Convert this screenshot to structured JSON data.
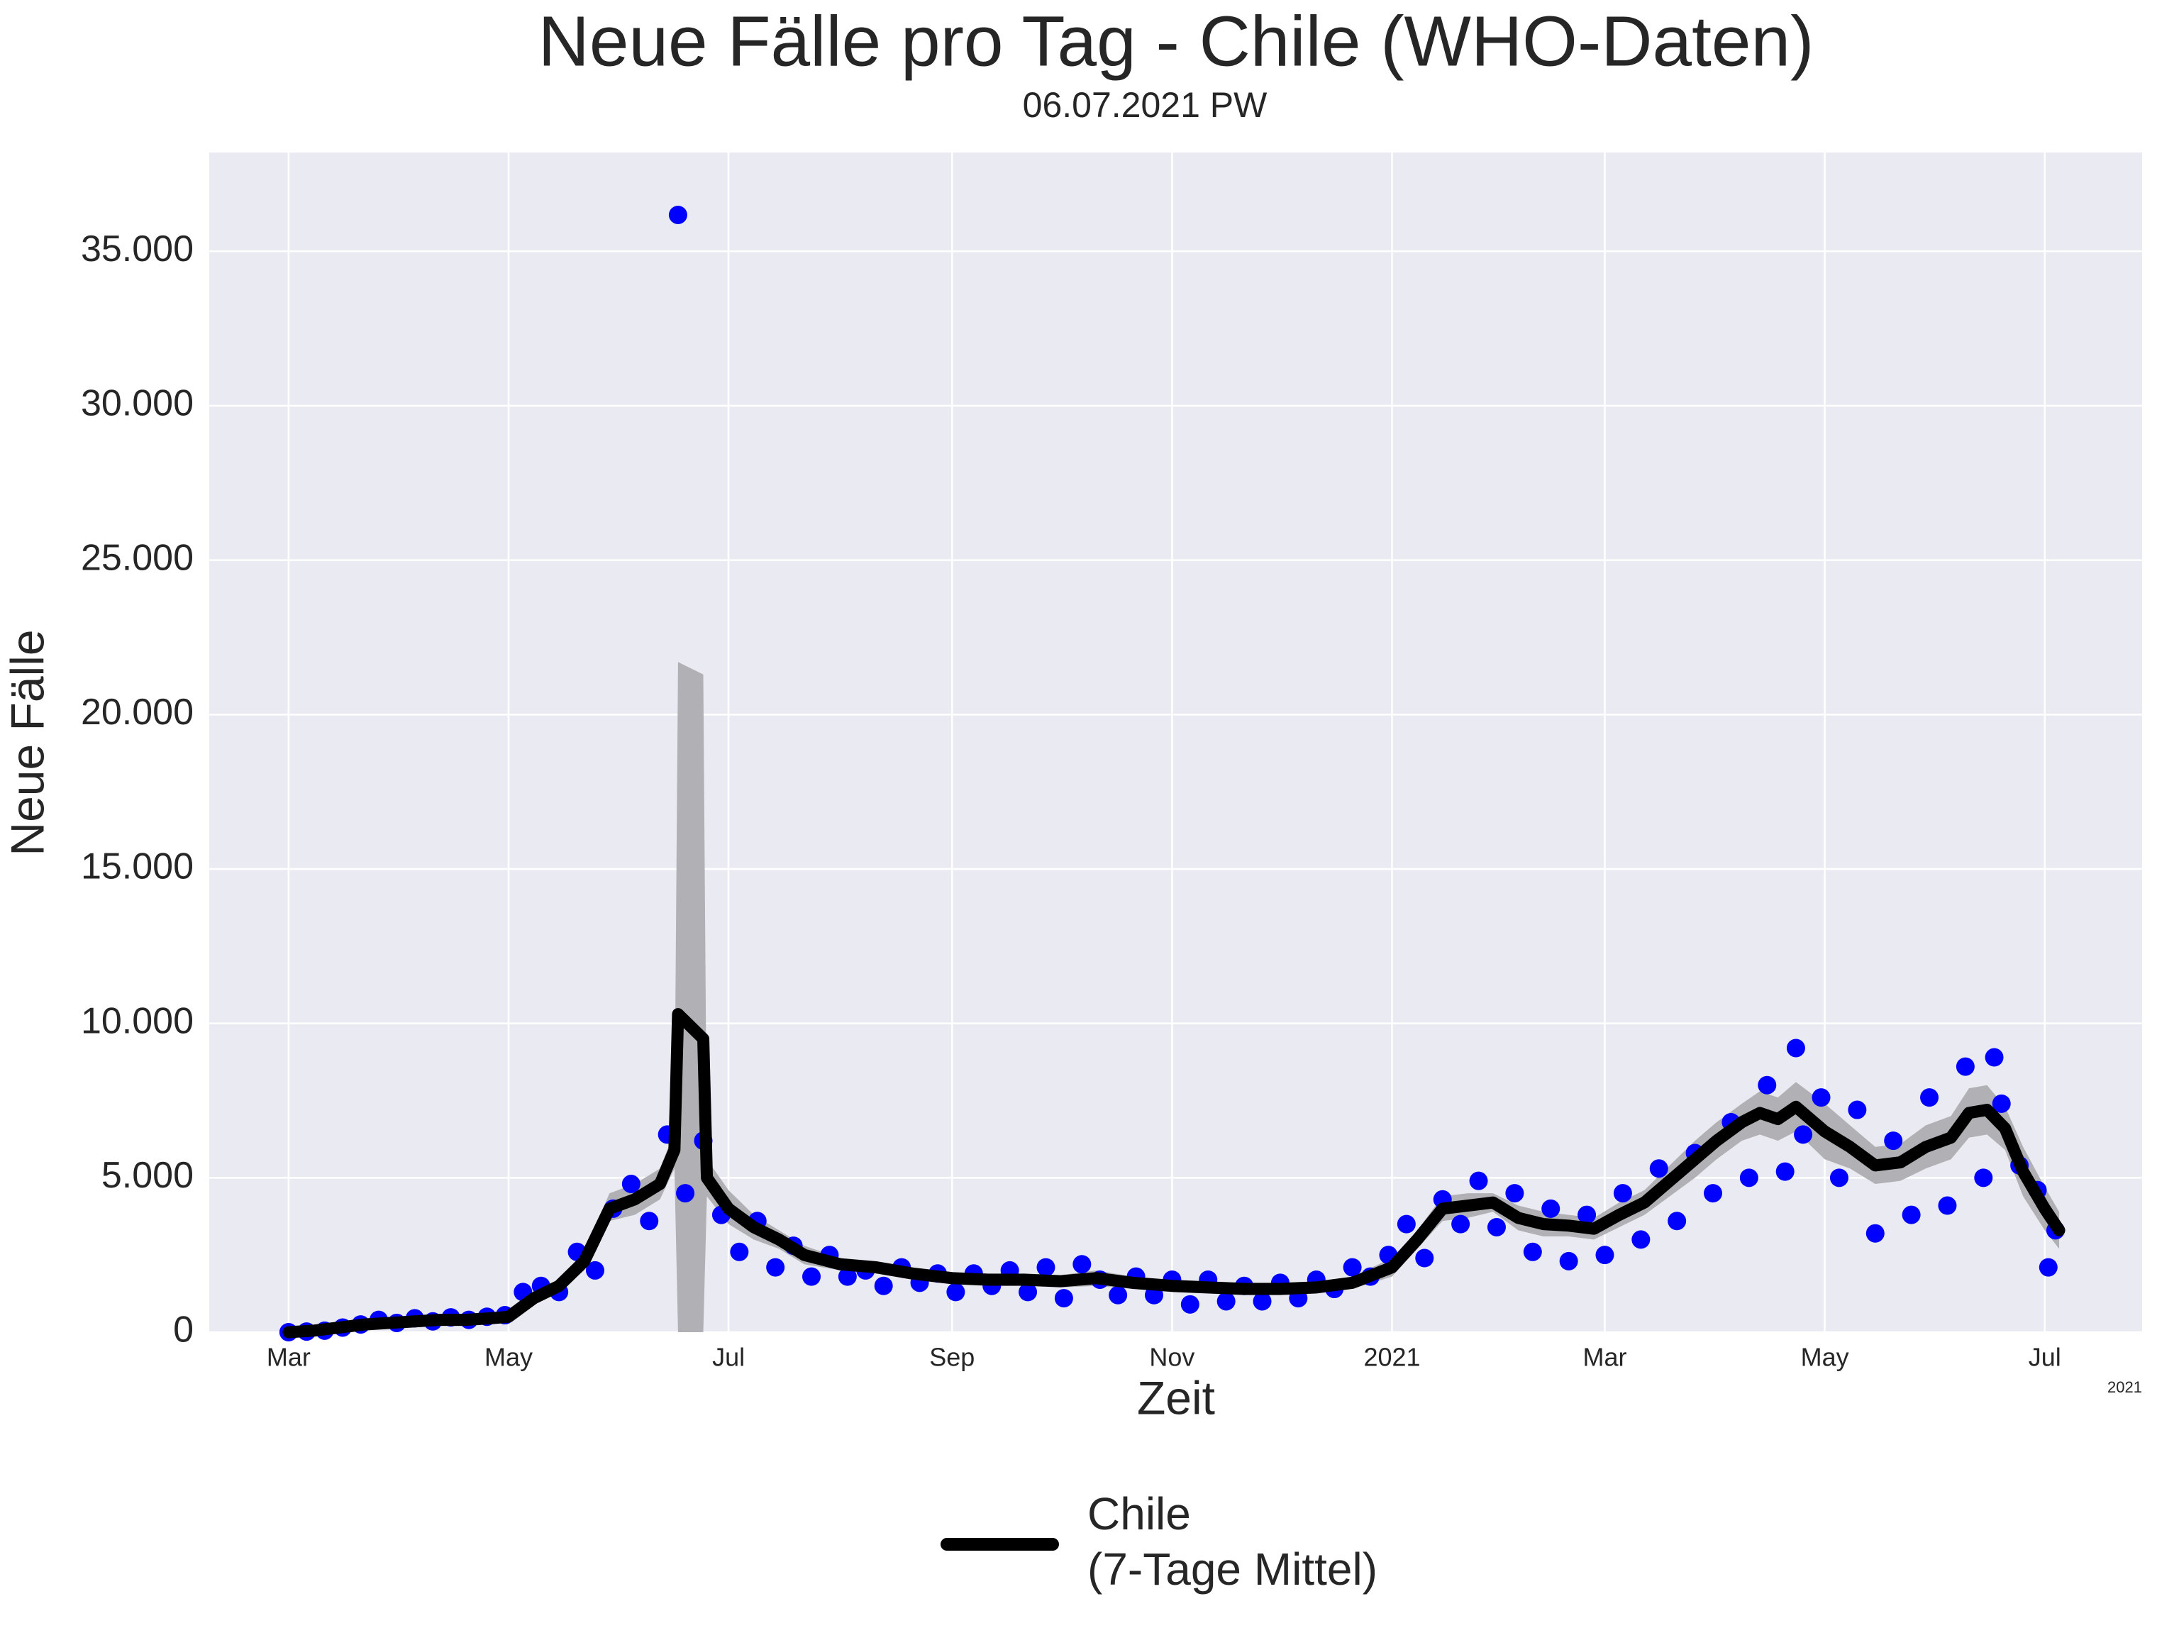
{
  "chart_data": {
    "type": "line",
    "title": "Neue Fälle pro Tag - Chile (WHO-Daten)",
    "subtitle": "06.07.2021 PW",
    "x_label": "Zeit",
    "y_label": "Neue Fälle",
    "x_offset_label": "2021",
    "xlim": [
      -22,
      514
    ],
    "xticks": [
      {
        "value": 0,
        "label": "Mar"
      },
      {
        "value": 61,
        "label": "May"
      },
      {
        "value": 122,
        "label": "Jul"
      },
      {
        "value": 184,
        "label": "Sep"
      },
      {
        "value": 245,
        "label": "Nov"
      },
      {
        "value": 306,
        "label": "2021"
      },
      {
        "value": 365,
        "label": "Mar"
      },
      {
        "value": 426,
        "label": "May"
      },
      {
        "value": 487,
        "label": "Jul"
      }
    ],
    "ylim": [
      0,
      38200
    ],
    "yticks": [
      0,
      {
        "value": 5000,
        "label": "5.000"
      },
      {
        "value": 10000,
        "label": "10.000"
      },
      {
        "value": 15000,
        "label": "15.000"
      },
      {
        "value": 20000,
        "label": "20.000"
      },
      {
        "value": 25000,
        "label": "25.000"
      },
      {
        "value": 30000,
        "label": "30.000"
      },
      {
        "value": 35000,
        "label": "35.000"
      }
    ],
    "grid": true,
    "legend": "bottom",
    "series": [
      {
        "name": "Chile\n(7-Tage Mittel)",
        "color": "#000000",
        "band_color": "#b0b0b5",
        "x": [
          0,
          7,
          14,
          21,
          28,
          35,
          42,
          49,
          56,
          61,
          68,
          75,
          82,
          89,
          96,
          103,
          107,
          108,
          115,
          116,
          122,
          129,
          136,
          143,
          153,
          163,
          173,
          184,
          194,
          204,
          214,
          224,
          234,
          245,
          255,
          265,
          275,
          285,
          295,
          306,
          313,
          320,
          327,
          334,
          341,
          348,
          355,
          362,
          369,
          376,
          383,
          390,
          396,
          403,
          408,
          413,
          418,
          426,
          433,
          440,
          447,
          454,
          461,
          466,
          471,
          476,
          481,
          487,
          491
        ],
        "values": [
          0,
          50,
          150,
          250,
          300,
          350,
          400,
          400,
          450,
          500,
          1100,
          1500,
          2300,
          4000,
          4300,
          4800,
          5900,
          10300,
          9500,
          5000,
          4000,
          3400,
          3000,
          2500,
          2200,
          2100,
          1900,
          1750,
          1700,
          1700,
          1650,
          1750,
          1600,
          1500,
          1450,
          1400,
          1400,
          1450,
          1600,
          2100,
          3000,
          4000,
          4100,
          4200,
          3700,
          3500,
          3450,
          3350,
          3800,
          4200,
          4900,
          5600,
          6200,
          6800,
          7100,
          6900,
          7300,
          6500,
          6000,
          5400,
          5500,
          6000,
          6300,
          7100,
          7200,
          6600,
          5200,
          4000,
          3300
        ],
        "upper": [
          50,
          100,
          250,
          350,
          400,
          450,
          500,
          500,
          550,
          600,
          1300,
          1700,
          2600,
          4500,
          4800,
          5300,
          6500,
          21700,
          21300,
          5600,
          4600,
          3800,
          3300,
          2800,
          2400,
          2300,
          2100,
          1950,
          1900,
          1900,
          1850,
          2000,
          1800,
          1700,
          1650,
          1600,
          1600,
          1650,
          1800,
          2400,
          3300,
          4400,
          4500,
          4500,
          4100,
          3900,
          3800,
          3700,
          4200,
          4600,
          5400,
          6200,
          6800,
          7400,
          7800,
          7600,
          8100,
          7400,
          6700,
          6000,
          6100,
          6700,
          7000,
          7900,
          8000,
          7300,
          6000,
          4700,
          3900
        ],
        "lower": [
          0,
          0,
          50,
          150,
          200,
          250,
          300,
          300,
          350,
          400,
          900,
          1300,
          2000,
          3600,
          3800,
          4300,
          5300,
          0,
          0,
          4400,
          3500,
          3000,
          2700,
          2200,
          2000,
          1900,
          1700,
          1550,
          1500,
          1500,
          1450,
          1500,
          1400,
          1300,
          1250,
          1200,
          1200,
          1250,
          1400,
          1800,
          2700,
          3600,
          3700,
          3900,
          3300,
          3100,
          3100,
          3000,
          3400,
          3800,
          4400,
          5000,
          5600,
          6200,
          6400,
          6200,
          6500,
          5600,
          5300,
          4800,
          4900,
          5300,
          5600,
          6300,
          6400,
          5900,
          4400,
          3300,
          2700
        ]
      }
    ],
    "scatter": {
      "color": "#0000ff",
      "x": [
        0,
        5,
        10,
        15,
        20,
        25,
        30,
        35,
        40,
        45,
        50,
        55,
        60,
        65,
        70,
        75,
        80,
        85,
        90,
        95,
        100,
        105,
        108,
        110,
        115,
        120,
        125,
        130,
        135,
        140,
        145,
        150,
        155,
        160,
        165,
        170,
        175,
        180,
        185,
        190,
        195,
        200,
        205,
        210,
        215,
        220,
        225,
        230,
        235,
        240,
        245,
        250,
        255,
        260,
        265,
        270,
        275,
        280,
        285,
        290,
        295,
        300,
        305,
        310,
        315,
        320,
        325,
        330,
        335,
        340,
        345,
        350,
        355,
        360,
        365,
        370,
        375,
        380,
        385,
        390,
        395,
        400,
        405,
        410,
        415,
        418,
        420,
        425,
        430,
        435,
        440,
        445,
        450,
        455,
        460,
        465,
        470,
        473,
        475,
        480,
        485,
        488,
        490
      ],
      "values": [
        0,
        20,
        50,
        150,
        250,
        400,
        300,
        450,
        350,
        480,
        400,
        500,
        550,
        1300,
        1500,
        1300,
        2600,
        2000,
        4000,
        4800,
        3600,
        6400,
        36179,
        4500,
        6200,
        3800,
        2600,
        3600,
        2100,
        2800,
        1800,
        2500,
        1800,
        2000,
        1500,
        2100,
        1600,
        1900,
        1300,
        1900,
        1500,
        2000,
        1300,
        2100,
        1100,
        2200,
        1700,
        1200,
        1800,
        1200,
        1700,
        900,
        1700,
        1000,
        1500,
        1000,
        1600,
        1100,
        1700,
        1400,
        2100,
        1800,
        2500,
        3500,
        2400,
        4300,
        3500,
        4900,
        3400,
        4500,
        2600,
        4000,
        2300,
        3800,
        2500,
        4500,
        3000,
        5300,
        3600,
        5800,
        4500,
        6800,
        5000,
        8000,
        5200,
        9200,
        6400,
        7600,
        5000,
        7200,
        3200,
        6200,
        3800,
        7600,
        4100,
        8600,
        5000,
        8900,
        7400,
        5400,
        4600,
        2100,
        3300
      ]
    }
  }
}
